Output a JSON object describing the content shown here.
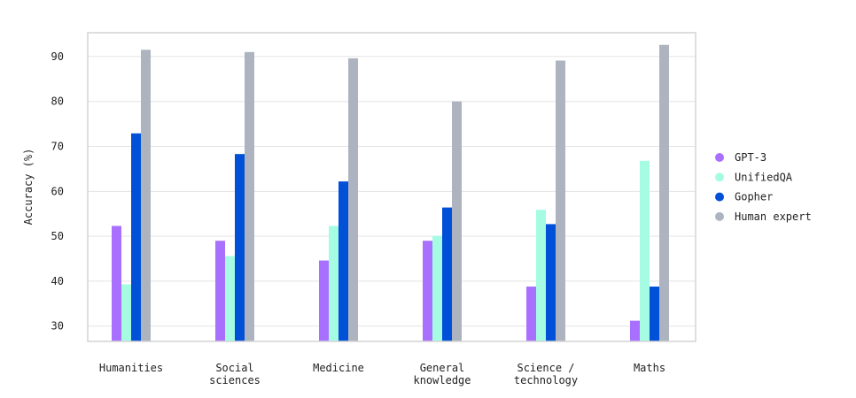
{
  "chart_data": {
    "type": "bar",
    "title": "",
    "xlabel": "",
    "ylabel": "Accuracy (%)",
    "ylim": [
      26.6,
      95.3
    ],
    "yticks": [
      30,
      40,
      50,
      60,
      70,
      80,
      90
    ],
    "grid": true,
    "legend_position": "right",
    "categories": [
      "Humanities",
      "Social\nsciences",
      "Medicine",
      "General\nknowledge",
      "Science /\ntechnology",
      "Maths"
    ],
    "series": [
      {
        "name": "GPT-3",
        "color": "#a970ff",
        "values": [
          52.3,
          49.0,
          44.6,
          49.0,
          38.8,
          31.2
        ]
      },
      {
        "name": "UnifiedQA",
        "color": "#a6fce2",
        "values": [
          39.3,
          45.6,
          52.3,
          50.1,
          55.9,
          66.8
        ]
      },
      {
        "name": "Gopher",
        "color": "#0050d8",
        "values": [
          72.9,
          68.3,
          62.2,
          56.4,
          52.7,
          38.8
        ]
      },
      {
        "name": "Human expert",
        "color": "#adb4c0",
        "values": [
          91.5,
          91.0,
          89.6,
          80.0,
          89.1,
          92.6
        ]
      }
    ]
  }
}
